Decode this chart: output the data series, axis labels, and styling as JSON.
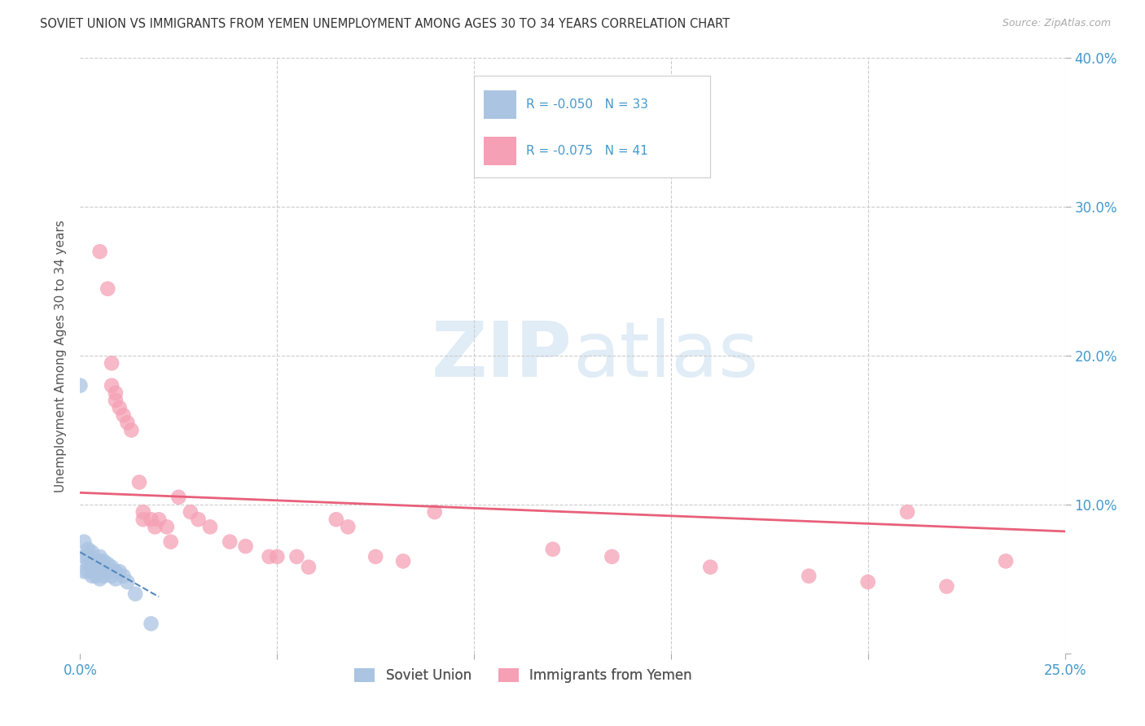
{
  "title": "SOVIET UNION VS IMMIGRANTS FROM YEMEN UNEMPLOYMENT AMONG AGES 30 TO 34 YEARS CORRELATION CHART",
  "source": "Source: ZipAtlas.com",
  "ylabel": "Unemployment Among Ages 30 to 34 years",
  "xlim": [
    0.0,
    0.25
  ],
  "ylim": [
    0.0,
    0.4
  ],
  "legend_label1": "Soviet Union",
  "legend_label2": "Immigrants from Yemen",
  "R1": "-0.050",
  "N1": "33",
  "R2": "-0.075",
  "N2": "41",
  "color_blue": "#aac4e2",
  "color_pink": "#f5a0b5",
  "color_blue_line": "#5588bb",
  "color_pink_line": "#e8607a",
  "soviet_x": [
    0.0,
    0.001,
    0.001,
    0.001,
    0.002,
    0.002,
    0.002,
    0.002,
    0.003,
    0.003,
    0.003,
    0.003,
    0.004,
    0.004,
    0.004,
    0.005,
    0.005,
    0.005,
    0.005,
    0.006,
    0.006,
    0.006,
    0.007,
    0.007,
    0.008,
    0.008,
    0.009,
    0.009,
    0.01,
    0.011,
    0.012,
    0.014,
    0.018
  ],
  "soviet_y": [
    0.18,
    0.075,
    0.065,
    0.055,
    0.07,
    0.065,
    0.06,
    0.055,
    0.068,
    0.062,
    0.058,
    0.052,
    0.06,
    0.058,
    0.052,
    0.065,
    0.062,
    0.055,
    0.05,
    0.062,
    0.057,
    0.052,
    0.06,
    0.055,
    0.058,
    0.052,
    0.055,
    0.05,
    0.055,
    0.052,
    0.048,
    0.04,
    0.02
  ],
  "yemen_x": [
    0.005,
    0.007,
    0.008,
    0.008,
    0.009,
    0.009,
    0.01,
    0.011,
    0.012,
    0.013,
    0.015,
    0.016,
    0.016,
    0.018,
    0.019,
    0.02,
    0.022,
    0.023,
    0.025,
    0.028,
    0.03,
    0.033,
    0.038,
    0.042,
    0.048,
    0.05,
    0.055,
    0.058,
    0.065,
    0.068,
    0.075,
    0.082,
    0.09,
    0.12,
    0.135,
    0.16,
    0.185,
    0.2,
    0.21,
    0.22,
    0.235
  ],
  "yemen_y": [
    0.27,
    0.245,
    0.195,
    0.18,
    0.175,
    0.17,
    0.165,
    0.16,
    0.155,
    0.15,
    0.115,
    0.095,
    0.09,
    0.09,
    0.085,
    0.09,
    0.085,
    0.075,
    0.105,
    0.095,
    0.09,
    0.085,
    0.075,
    0.072,
    0.065,
    0.065,
    0.065,
    0.058,
    0.09,
    0.085,
    0.065,
    0.062,
    0.095,
    0.07,
    0.065,
    0.058,
    0.052,
    0.048,
    0.095,
    0.045,
    0.062
  ],
  "pink_line_x": [
    0.0,
    0.25
  ],
  "pink_line_y": [
    0.108,
    0.082
  ],
  "blue_line_x": [
    0.0,
    0.02
  ],
  "blue_line_y": [
    0.068,
    0.038
  ]
}
